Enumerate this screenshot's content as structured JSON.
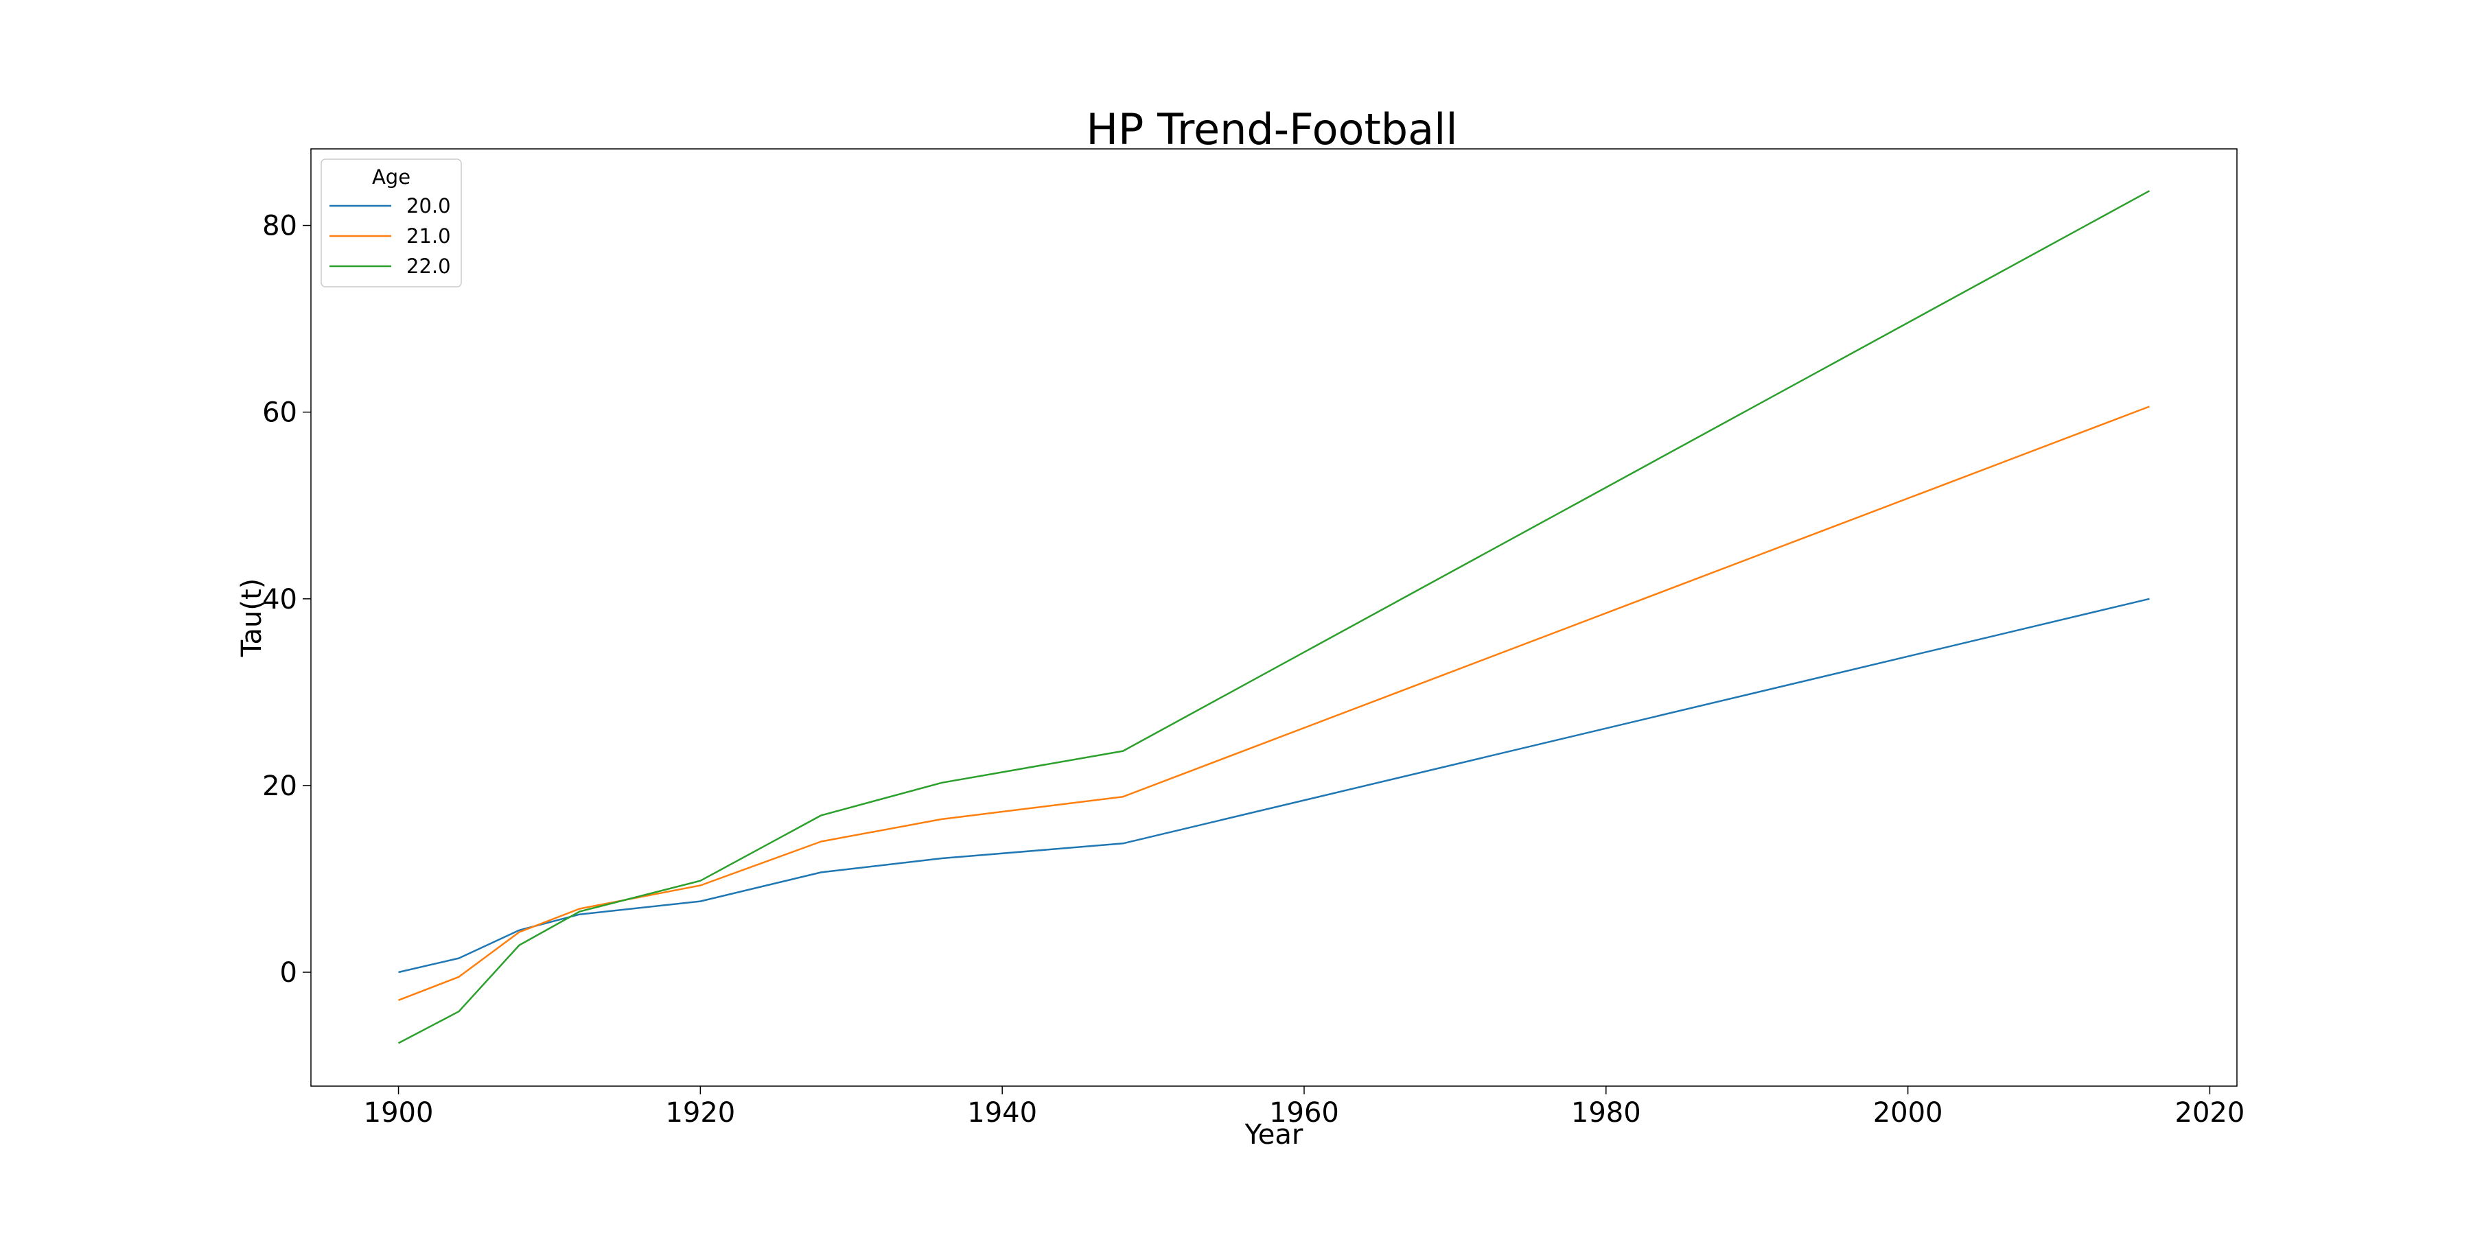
{
  "chart_data": {
    "type": "line",
    "title": "HP Trend-Football",
    "xlabel": "Year",
    "ylabel": "Tau(t)",
    "xlim": [
      1894.2,
      2021.8
    ],
    "ylim": [
      -12.2,
      88.2
    ],
    "xticks": [
      1900,
      1920,
      1940,
      1960,
      1980,
      2000,
      2020
    ],
    "yticks": [
      0,
      20,
      40,
      60,
      80
    ],
    "grid": false,
    "legend": {
      "title": "Age",
      "placement": "top-left"
    },
    "series": [
      {
        "name": "20.0",
        "color": "#1f77b4",
        "x": [
          1900,
          1904,
          1908,
          1912,
          1920,
          1928,
          1936,
          1948,
          2016
        ],
        "y": [
          0,
          1.5,
          4.5,
          6.2,
          7.6,
          10.7,
          12.2,
          13.8,
          40.0
        ]
      },
      {
        "name": "21.0",
        "color": "#ff7f0e",
        "x": [
          1900,
          1904,
          1908,
          1912,
          1920,
          1928,
          1936,
          1948,
          2016
        ],
        "y": [
          -3.0,
          -0.5,
          4.3,
          6.8,
          9.3,
          14.0,
          16.4,
          18.8,
          60.6
        ]
      },
      {
        "name": "22.0",
        "color": "#2ca02c",
        "x": [
          1900,
          1904,
          1908,
          1912,
          1920,
          1928,
          1936,
          1948,
          2016
        ],
        "y": [
          -7.6,
          -4.2,
          2.9,
          6.5,
          9.8,
          16.8,
          20.3,
          23.7,
          83.7
        ]
      }
    ]
  }
}
